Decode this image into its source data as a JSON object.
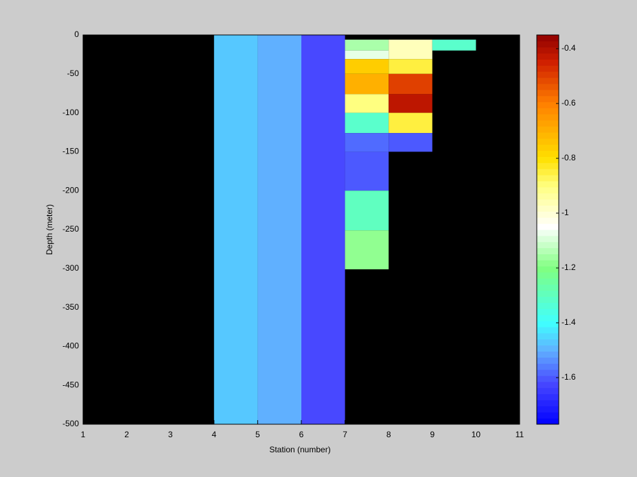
{
  "chart_data": {
    "type": "heatmap",
    "xlabel": "Station (number)",
    "ylabel": "Depth (meter)",
    "xlim": [
      1,
      11
    ],
    "xticks": [
      1,
      2,
      3,
      4,
      5,
      6,
      7,
      8,
      9,
      10,
      11
    ],
    "ylim": [
      -500,
      0
    ],
    "yticks": [
      0,
      -50,
      -100,
      -150,
      -200,
      -250,
      -300,
      -350,
      -400,
      -450,
      -500
    ],
    "background": "#000000",
    "cells": [
      {
        "x": [
          4,
          5
        ],
        "depth": [
          0,
          -500
        ],
        "value": -1.47
      },
      {
        "x": [
          5,
          6
        ],
        "depth": [
          0,
          -500
        ],
        "value": -1.5
      },
      {
        "x": [
          6,
          7
        ],
        "depth": [
          0,
          -500
        ],
        "value": -1.62
      },
      {
        "x": [
          7,
          8
        ],
        "depth": [
          -6,
          -20
        ],
        "value": -1.15
      },
      {
        "x": [
          7,
          8
        ],
        "depth": [
          -20,
          -31
        ],
        "value": -1.08
      },
      {
        "x": [
          7,
          8
        ],
        "depth": [
          -31,
          -50
        ],
        "value": -0.76
      },
      {
        "x": [
          7,
          8
        ],
        "depth": [
          -50,
          -76
        ],
        "value": -0.7
      },
      {
        "x": [
          7,
          8
        ],
        "depth": [
          -76,
          -100
        ],
        "value": -0.9
      },
      {
        "x": [
          7,
          8
        ],
        "depth": [
          -100,
          -126
        ],
        "value": -1.32
      },
      {
        "x": [
          7,
          8
        ],
        "depth": [
          -126,
          -150
        ],
        "value": -1.58
      },
      {
        "x": [
          7,
          8
        ],
        "depth": [
          -150,
          -200
        ],
        "value": -1.6
      },
      {
        "x": [
          7,
          8
        ],
        "depth": [
          -200,
          -251
        ],
        "value": -1.3
      },
      {
        "x": [
          7,
          8
        ],
        "depth": [
          -251,
          -301
        ],
        "value": -1.18
      },
      {
        "x": [
          8,
          9
        ],
        "depth": [
          -6,
          -31
        ],
        "value": -0.97
      },
      {
        "x": [
          8,
          9
        ],
        "depth": [
          -31,
          -50
        ],
        "value": -0.85
      },
      {
        "x": [
          8,
          9
        ],
        "depth": [
          -50,
          -76
        ],
        "value": -0.5
      },
      {
        "x": [
          8,
          9
        ],
        "depth": [
          -76,
          -100
        ],
        "value": -0.42
      },
      {
        "x": [
          8,
          9
        ],
        "depth": [
          -100,
          -126
        ],
        "value": -0.85
      },
      {
        "x": [
          8,
          9
        ],
        "depth": [
          -126,
          -150
        ],
        "value": -1.6
      },
      {
        "x": [
          9,
          10
        ],
        "depth": [
          -6,
          -20
        ],
        "value": -1.32
      }
    ],
    "clim": [
      -1.77,
      -0.35
    ],
    "cticks": [
      -0.4,
      -0.6,
      -0.8,
      -1,
      -1.2,
      -1.4,
      -1.6
    ],
    "colormap": [
      {
        "value": -1.77,
        "color": "#0000ff"
      },
      {
        "value": -1.62,
        "color": "#4848ff"
      },
      {
        "value": -1.5,
        "color": "#60b0ff"
      },
      {
        "value": -1.4,
        "color": "#40ffff"
      },
      {
        "value": -1.2,
        "color": "#80ff80"
      },
      {
        "value": -1.05,
        "color": "#ffffff"
      },
      {
        "value": -0.9,
        "color": "#ffff80"
      },
      {
        "value": -0.8,
        "color": "#ffe000"
      },
      {
        "value": -0.6,
        "color": "#ff8000"
      },
      {
        "value": -0.45,
        "color": "#d02000"
      },
      {
        "value": -0.35,
        "color": "#900000"
      }
    ]
  }
}
